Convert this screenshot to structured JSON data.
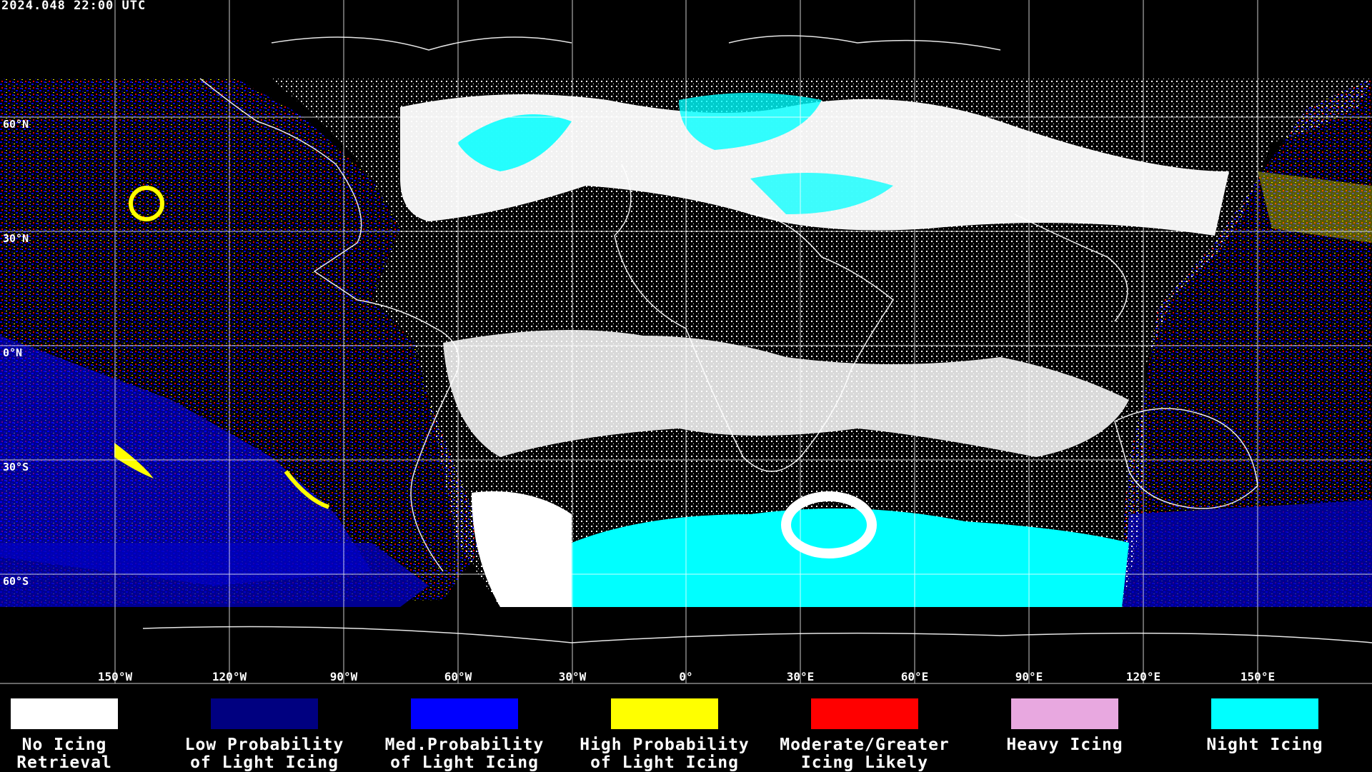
{
  "header": {
    "timestamp": "2024.048 22:00 UTC"
  },
  "lat_labels": [
    "60°N",
    "30°N",
    "0°N",
    "30°S",
    "60°S"
  ],
  "lon_labels": [
    "150°W",
    "120°W",
    "90°W",
    "60°W",
    "30°W",
    "0°",
    "30°E",
    "60°E",
    "90°E",
    "120°E",
    "150°E"
  ],
  "legend": [
    {
      "color": "#ffffff",
      "line1": "No Icing",
      "line2": "Retrieval"
    },
    {
      "color": "#000080",
      "line1": "Low Probability",
      "line2": "of Light Icing"
    },
    {
      "color": "#0000ff",
      "line1": "Med.Probability",
      "line2": "of Light Icing"
    },
    {
      "color": "#ffff00",
      "line1": "High Probability",
      "line2": "of Light Icing"
    },
    {
      "color": "#ff0000",
      "line1": "Moderate/Greater",
      "line2": "Icing Likely"
    },
    {
      "color": "#e8a8e0",
      "line1": "Heavy Icing",
      "line2": ""
    },
    {
      "color": "#00ffff",
      "line1": "Night Icing",
      "line2": ""
    }
  ]
}
